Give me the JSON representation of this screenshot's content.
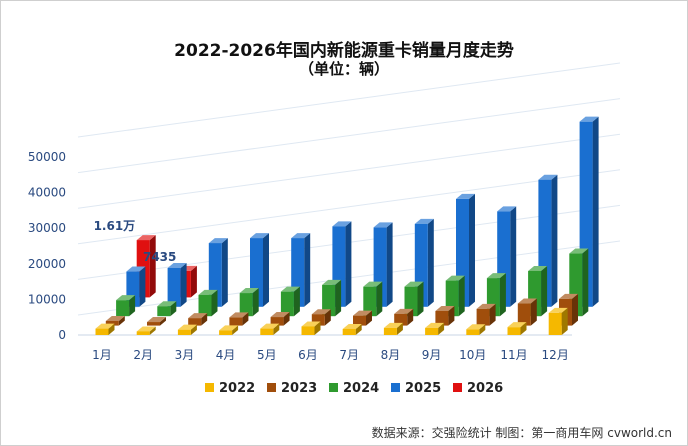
{
  "header": {
    "title": "2022-2026年国内新能源重卡销量月度走势",
    "subtitle": "（单位：辆）"
  },
  "source": "数据来源：交强险统计 制图：第一商用车网 cvworld.cn",
  "colors": {
    "2022": "#f5b800",
    "2023": "#a04e0c",
    "2024": "#2f9a2f",
    "2025": "#1a6fd0",
    "2026": "#e01010",
    "axis_text": "#2a4a80",
    "gridline": "#dfe8f2"
  },
  "chart_data": {
    "type": "bar",
    "categories": [
      "1月",
      "2月",
      "3月",
      "4月",
      "5月",
      "6月",
      "7月",
      "8月",
      "9月",
      "10月",
      "11月",
      "12月"
    ],
    "ylim": [
      0,
      50000
    ],
    "yticks": [
      "0",
      "10000",
      "20000",
      "30000",
      "40000",
      "50000"
    ],
    "legend_position": "bottom",
    "series": [
      {
        "name": "2022",
        "values": [
          1800,
          1000,
          1500,
          1300,
          1800,
          2400,
          1700,
          2000,
          2000,
          1600,
          2200,
          6200
        ]
      },
      {
        "name": "2023",
        "values": [
          1300,
          1000,
          2100,
          2300,
          2400,
          3200,
          2800,
          3300,
          4100,
          4700,
          6200,
          7500
        ]
      },
      {
        "name": "2024",
        "values": [
          4500,
          2800,
          6000,
          6500,
          6900,
          8800,
          8300,
          8300,
          10000,
          10700,
          12700,
          17600
        ]
      },
      {
        "name": "2025",
        "values": [
          9900,
          10900,
          17900,
          19300,
          19300,
          22600,
          22300,
          23300,
          30300,
          26800,
          35700,
          52000
        ]
      },
      {
        "name": "2026",
        "values": [
          16100,
          7435,
          null,
          null,
          null,
          null,
          null,
          null,
          null,
          null,
          null,
          null
        ]
      }
    ],
    "annotations": [
      "1.61万",
      "7435"
    ]
  }
}
